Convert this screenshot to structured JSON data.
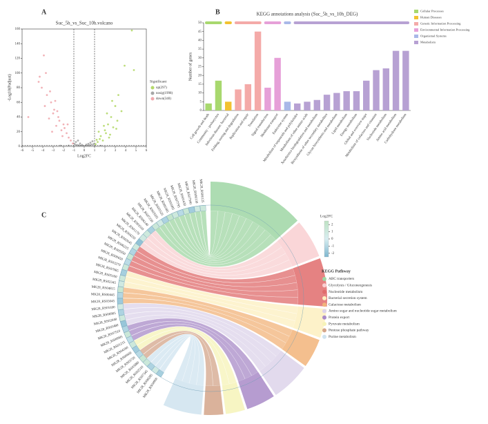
{
  "chart_data": [
    {
      "type": "scatter",
      "panel": "A",
      "title": "Suc_5h_vs_Suc_10h.volcano",
      "xlabel": "Log2FC",
      "ylabel": "-Log10(Padjust)",
      "xlim": [
        -6,
        6
      ],
      "xticks": [
        -6,
        -5,
        -4,
        -3,
        -2,
        -1,
        0,
        1,
        2,
        3,
        4,
        5,
        6
      ],
      "ylim": [
        0,
        160
      ],
      "yticks": [
        0,
        20,
        40,
        60,
        80,
        100,
        120,
        140,
        160
      ],
      "legend_title": "Significant",
      "thresholds": {
        "x": [
          -1,
          1
        ],
        "y": 1.3
      },
      "series": [
        {
          "name": "up(297)",
          "color": "#b5d96b",
          "x": [
            1.1,
            1.3,
            1.5,
            1.6,
            1.8,
            2.0,
            2.1,
            2.3,
            2.4,
            2.6,
            2.8,
            3.0,
            3.2,
            3.3,
            3.6,
            3.9,
            2.2,
            1.9,
            2.7,
            4.6,
            4.8,
            1.4,
            2.5,
            3.1,
            1.2
          ],
          "values": [
            3,
            6,
            10,
            14,
            8,
            22,
            18,
            30,
            12,
            40,
            26,
            55,
            35,
            70,
            48,
            110,
            45,
            28,
            62,
            158,
            104,
            20,
            16,
            24,
            9
          ]
        },
        {
          "name": "nosig(1998)",
          "color": "#a6a6a6",
          "x": [
            -0.9,
            -0.7,
            -0.5,
            -0.3,
            -0.1,
            0.1,
            0.3,
            0.5,
            0.7,
            0.9,
            -0.8,
            -0.4,
            0.0,
            0.4,
            0.8,
            -0.6,
            0.6,
            -0.2,
            0.2,
            -1.5,
            1.6,
            -2.3
          ],
          "values": [
            3,
            2,
            1.5,
            1,
            0.5,
            0.6,
            1,
            1.8,
            2.5,
            3.2,
            6,
            4,
            0.3,
            3.5,
            7,
            8,
            5,
            2,
            2.4,
            1,
            0.8,
            0.9
          ]
        },
        {
          "name": "down(340)",
          "color": "#f0a9ae",
          "x": [
            -1.1,
            -1.3,
            -1.5,
            -1.7,
            -1.9,
            -2.0,
            -2.2,
            -2.4,
            -2.5,
            -2.7,
            -2.9,
            -3.0,
            -3.2,
            -3.4,
            -3.6,
            -3.8,
            -3.9,
            -4.1,
            -4.3,
            -4.4,
            -5.4,
            -2.1,
            -2.8,
            -3.3,
            -1.6,
            -2.6,
            -3.1,
            -3.7
          ],
          "values": [
            4,
            8,
            12,
            18,
            25,
            30,
            22,
            35,
            40,
            28,
            50,
            45,
            60,
            38,
            70,
            55,
            124,
            80,
            95,
            88,
            40,
            14,
            62,
            75,
            30,
            48,
            20,
            100
          ]
        }
      ]
    },
    {
      "type": "bar",
      "panel": "B",
      "title": "KEGG annotations analysis (Suc_5h_vs_10h_DEG)",
      "ylabel": "Number of genes",
      "categories": [
        "Cell growth and death",
        "Community - prokaryotes",
        "Infectious disease: bacterial",
        "Folding, sorting and degradation",
        "Replication and repair",
        "Translation",
        "Signal transduction",
        "Membrane transport",
        "Endocrine system",
        "Metabolism of terpenoids and polyketides",
        "Metabolism of other amino acids",
        "Xenobiotics biodegradation and metabolism",
        "Biosynthesis of other secondary metabolites",
        "Glycan biosynthesis and metabolism",
        "Lipid metabolism",
        "Energy metabolism",
        "Global and overview maps",
        "Metabolism of cofactors and vitamins",
        "Nucleotide metabolism",
        "Amino acid metabolism",
        "Carbohydrate metabolism"
      ],
      "values": [
        4,
        17,
        5,
        12,
        15,
        45,
        13,
        30,
        5,
        4,
        5,
        6,
        9,
        10,
        11,
        11,
        17,
        23,
        24,
        34,
        34
      ],
      "colors": [
        "#a8d86e",
        "#a8d86e",
        "#f2c230",
        "#f4aaa8",
        "#f4aaa8",
        "#f4aaa8",
        "#e6a0d8",
        "#e6a0d8",
        "#a9b8e8",
        "#b7a1d3",
        "#b7a1d3",
        "#b7a1d3",
        "#b7a1d3",
        "#b7a1d3",
        "#b7a1d3",
        "#b7a1d3",
        "#b7a1d3",
        "#b7a1d3",
        "#b7a1d3",
        "#b7a1d3",
        "#b7a1d3"
      ],
      "ylim": [
        0,
        50
      ],
      "yticks": [
        0,
        5,
        10,
        15,
        20,
        25,
        30,
        35,
        40,
        45,
        50
      ],
      "legend": [
        {
          "name": "Cellular Processes",
          "color": "#a8d86e"
        },
        {
          "name": "Human Diseases",
          "color": "#f2c230"
        },
        {
          "name": "Genetic Information Processing",
          "color": "#f4aaa8"
        },
        {
          "name": "Environmental Information Processing",
          "color": "#e6a0d8"
        },
        {
          "name": "Organismal Systems",
          "color": "#a9b8e8"
        },
        {
          "name": "Metabolism",
          "color": "#b7a1d3"
        }
      ]
    },
    {
      "type": "chord",
      "panel": "C",
      "colorbar": {
        "title": "Log2FC",
        "lim": [
          -2.5,
          2.5
        ],
        "ticks": [
          -2,
          -1,
          0,
          1,
          2
        ],
        "colors": [
          "#7fb7cf",
          "#d8edf1",
          "#bfe3c4"
        ]
      },
      "legend_title": "KEGG Pathway",
      "pathways": [
        {
          "name": "ABC transporters",
          "color": "#9fd6a4",
          "genes": [
            "MK28_RS06125",
            "MK28_RS06130",
            "MK28_RS07940",
            "MK28_RS01430",
            "MK28_RS07795",
            "MK28_RS01985",
            "MK28_RS05305",
            "MK28_RS05520",
            "MK28_RS03505",
            "MK28_RS07250"
          ],
          "log2fc": [
            1.2,
            0.8,
            -1.5,
            1.6,
            -0.9,
            1.1,
            2.0,
            -1.2,
            0.7,
            1.4
          ]
        },
        {
          "name": "Glycolysis / Gluconeogenesis",
          "color": "#f9cfd1",
          "genes": [
            "MK28_RS06140",
            "MK28_RS03510",
            "MK28_RS01170",
            "MK28_RS04250"
          ],
          "log2fc": [
            -1.3,
            1.1,
            0.9,
            -2.0
          ]
        },
        {
          "name": "Nucleotide metabolism",
          "color": "#e06c6c",
          "genes": [
            "MK28_RS02645",
            "MK28_RS06225",
            "MK28_RS05950",
            "MK28_RS00650",
            "MK28_RS03270"
          ],
          "log2fc": [
            1.0,
            -1.1,
            1.5,
            -0.8,
            1.3
          ]
        },
        {
          "name": "Bacterial secretion system",
          "color": "#fdf0c0",
          "genes": [
            "MK28_RS07085",
            "MK28_RS05160",
            "MK28_RS02345"
          ],
          "log2fc": [
            -1.4,
            1.2,
            0.9
          ]
        },
        {
          "name": "Galactose metabolism",
          "color": "#f2b47a",
          "genes": [
            "MK28_RS04815",
            "MK28_RS00445",
            "MK28_RS03045"
          ],
          "log2fc": [
            1.7,
            -1.0,
            -1.6
          ]
        },
        {
          "name": "Amino sugar and nucleotide sugar metabolism",
          "color": "#ddd3ea",
          "genes": [
            "MK28_RS01690",
            "MK28_RS06905",
            "MK28_RS02040",
            "MK28_RS05480"
          ],
          "log2fc": [
            0.8,
            -1.2,
            1.1,
            -1.8
          ]
        },
        {
          "name": "Protein export",
          "color": "#a98bc8",
          "genes": [
            "MK28_RS07510",
            "MK28_RS00905",
            "MK28_RS01215"
          ],
          "log2fc": [
            -1.1,
            1.4,
            -0.7
          ]
        },
        {
          "name": "Pyruvate metabolism",
          "color": "#f6f3b8",
          "genes": [
            "MK28_RS04180",
            "MK28_RS06660"
          ],
          "log2fc": [
            1.2,
            -1.5
          ]
        },
        {
          "name": "Pentose phosphate pathway",
          "color": "#d4a58a",
          "genes": [
            "MK28_RS03720",
            "MK28_RS05880"
          ],
          "log2fc": [
            -0.9,
            1.6
          ]
        },
        {
          "name": "Purine metabolism",
          "color": "#cfe3ef",
          "genes": [
            "MK28_RS02510",
            "MK28_RS07345",
            "MK28_RS00285",
            "MK28_RS04960"
          ],
          "log2fc": [
            1.3,
            -1.2,
            0.8,
            -1.4
          ]
        }
      ]
    }
  ]
}
